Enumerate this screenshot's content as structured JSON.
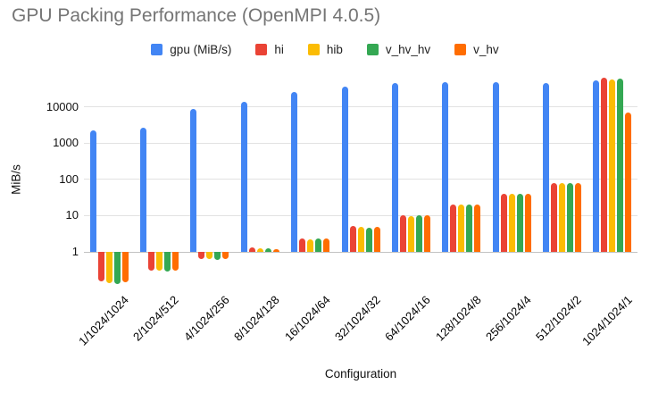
{
  "title": "GPU Packing Performance (OpenMPI 4.0.5)",
  "chart_data": {
    "type": "bar",
    "title": "GPU Packing Performance (OpenMPI 4.0.5)",
    "xlabel": "Configuration",
    "ylabel": "MiB/s",
    "y_scale": "log",
    "grid": true,
    "legend_position": "top",
    "y_ticks": [
      10000,
      1000,
      100,
      10,
      1
    ],
    "ylim": [
      0.1,
      100000
    ],
    "categories": [
      "1/1024/1024",
      "2/1024/512",
      "4/1024/256",
      "8/1024/128",
      "16/1024/64",
      "32/1024/32",
      "64/1024/16",
      "128/1024/8",
      "256/1024/4",
      "512/1024/2",
      "1024/1024/1"
    ],
    "series": [
      {
        "name": "gpu (MiB/s)",
        "color": "#4285F4",
        "values": [
          2200,
          2700,
          8500,
          14000,
          25000,
          36000,
          44000,
          48000,
          49000,
          46000,
          54000
        ]
      },
      {
        "name": "hi",
        "color": "#EA4335",
        "values": [
          0.15,
          0.3,
          0.62,
          1.3,
          2.4,
          5.2,
          10.3,
          20,
          40,
          80,
          62000
        ]
      },
      {
        "name": "hib",
        "color": "#FBBC04",
        "values": [
          0.14,
          0.3,
          0.62,
          1.25,
          2.2,
          4.8,
          9.8,
          20,
          41,
          79,
          57000
        ]
      },
      {
        "name": "v_hv_hv",
        "color": "#34A853",
        "values": [
          0.13,
          0.28,
          0.6,
          1.25,
          2.35,
          4.5,
          10.0,
          20,
          40,
          78,
          60000
        ]
      },
      {
        "name": "v_hv",
        "color": "#FF6D01",
        "values": [
          0.145,
          0.3,
          0.62,
          1.2,
          2.3,
          5.0,
          10.0,
          20,
          41,
          80,
          6800
        ]
      }
    ]
  },
  "colors": {
    "title_text": "#757575",
    "gridline": "#e2e2e2",
    "axis_line": "#c2c2c2",
    "tick_text": "#111111"
  }
}
